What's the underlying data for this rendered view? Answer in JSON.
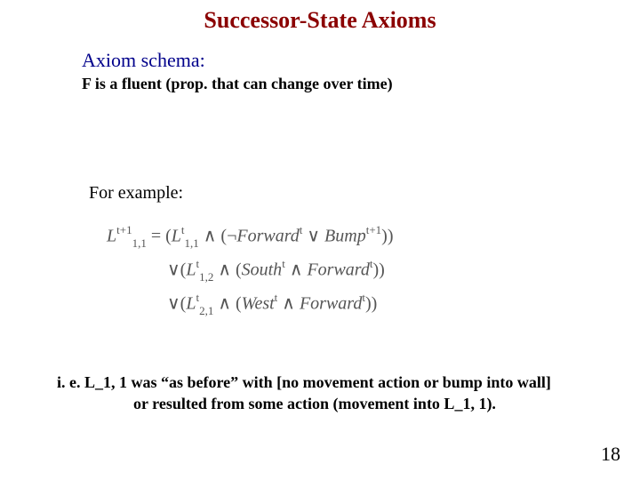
{
  "title": "Successor-State Axioms",
  "title_color": "#8b0000",
  "axiom_schema_label": "Axiom schema:",
  "axiom_schema_color": "#00008b",
  "fluent_line": "F is a fluent (prop. that can change over time)",
  "for_example": "For example:",
  "formula": {
    "color": "#555555",
    "lhs_base": "L",
    "lhs_sub": "1,1",
    "lhs_sup": "t+1",
    "eq": " = ",
    "line1_open": "(",
    "line1_a_base": "L",
    "line1_a_sub": "1,1",
    "line1_a_sup": "t",
    "and": " ∧ ",
    "line1_paren_open": "(¬",
    "line1_fwd": "Forward",
    "line1_fwd_sup": "t",
    "or": " ∨ ",
    "line1_bump": "Bump",
    "line1_bump_sup": "t+1",
    "line1_close": "))",
    "line2_or": "∨(",
    "line2_a_base": "L",
    "line2_a_sub": "1,2",
    "line2_a_sup": "t",
    "line2_paren_open": "(",
    "line2_south": "South",
    "line2_south_sup": "t",
    "line2_fwd": "Forward",
    "line2_fwd_sup": "t",
    "line2_close": "))",
    "line3_or": "∨(",
    "line3_a_base": "L",
    "line3_a_sub": "2,1",
    "line3_a_sup": "t",
    "line3_paren_open": "(",
    "line3_west": "West",
    "line3_west_sup": "t",
    "line3_fwd": "Forward",
    "line3_fwd_sup": "t",
    "line3_close": "))"
  },
  "explain_line1": "i. e. L_1, 1 was “as before” with [no movement action or bump into wall]",
  "explain_line2": "or resulted from some action (movement into L_1, 1).",
  "page_number": "18",
  "background_color": "#ffffff"
}
